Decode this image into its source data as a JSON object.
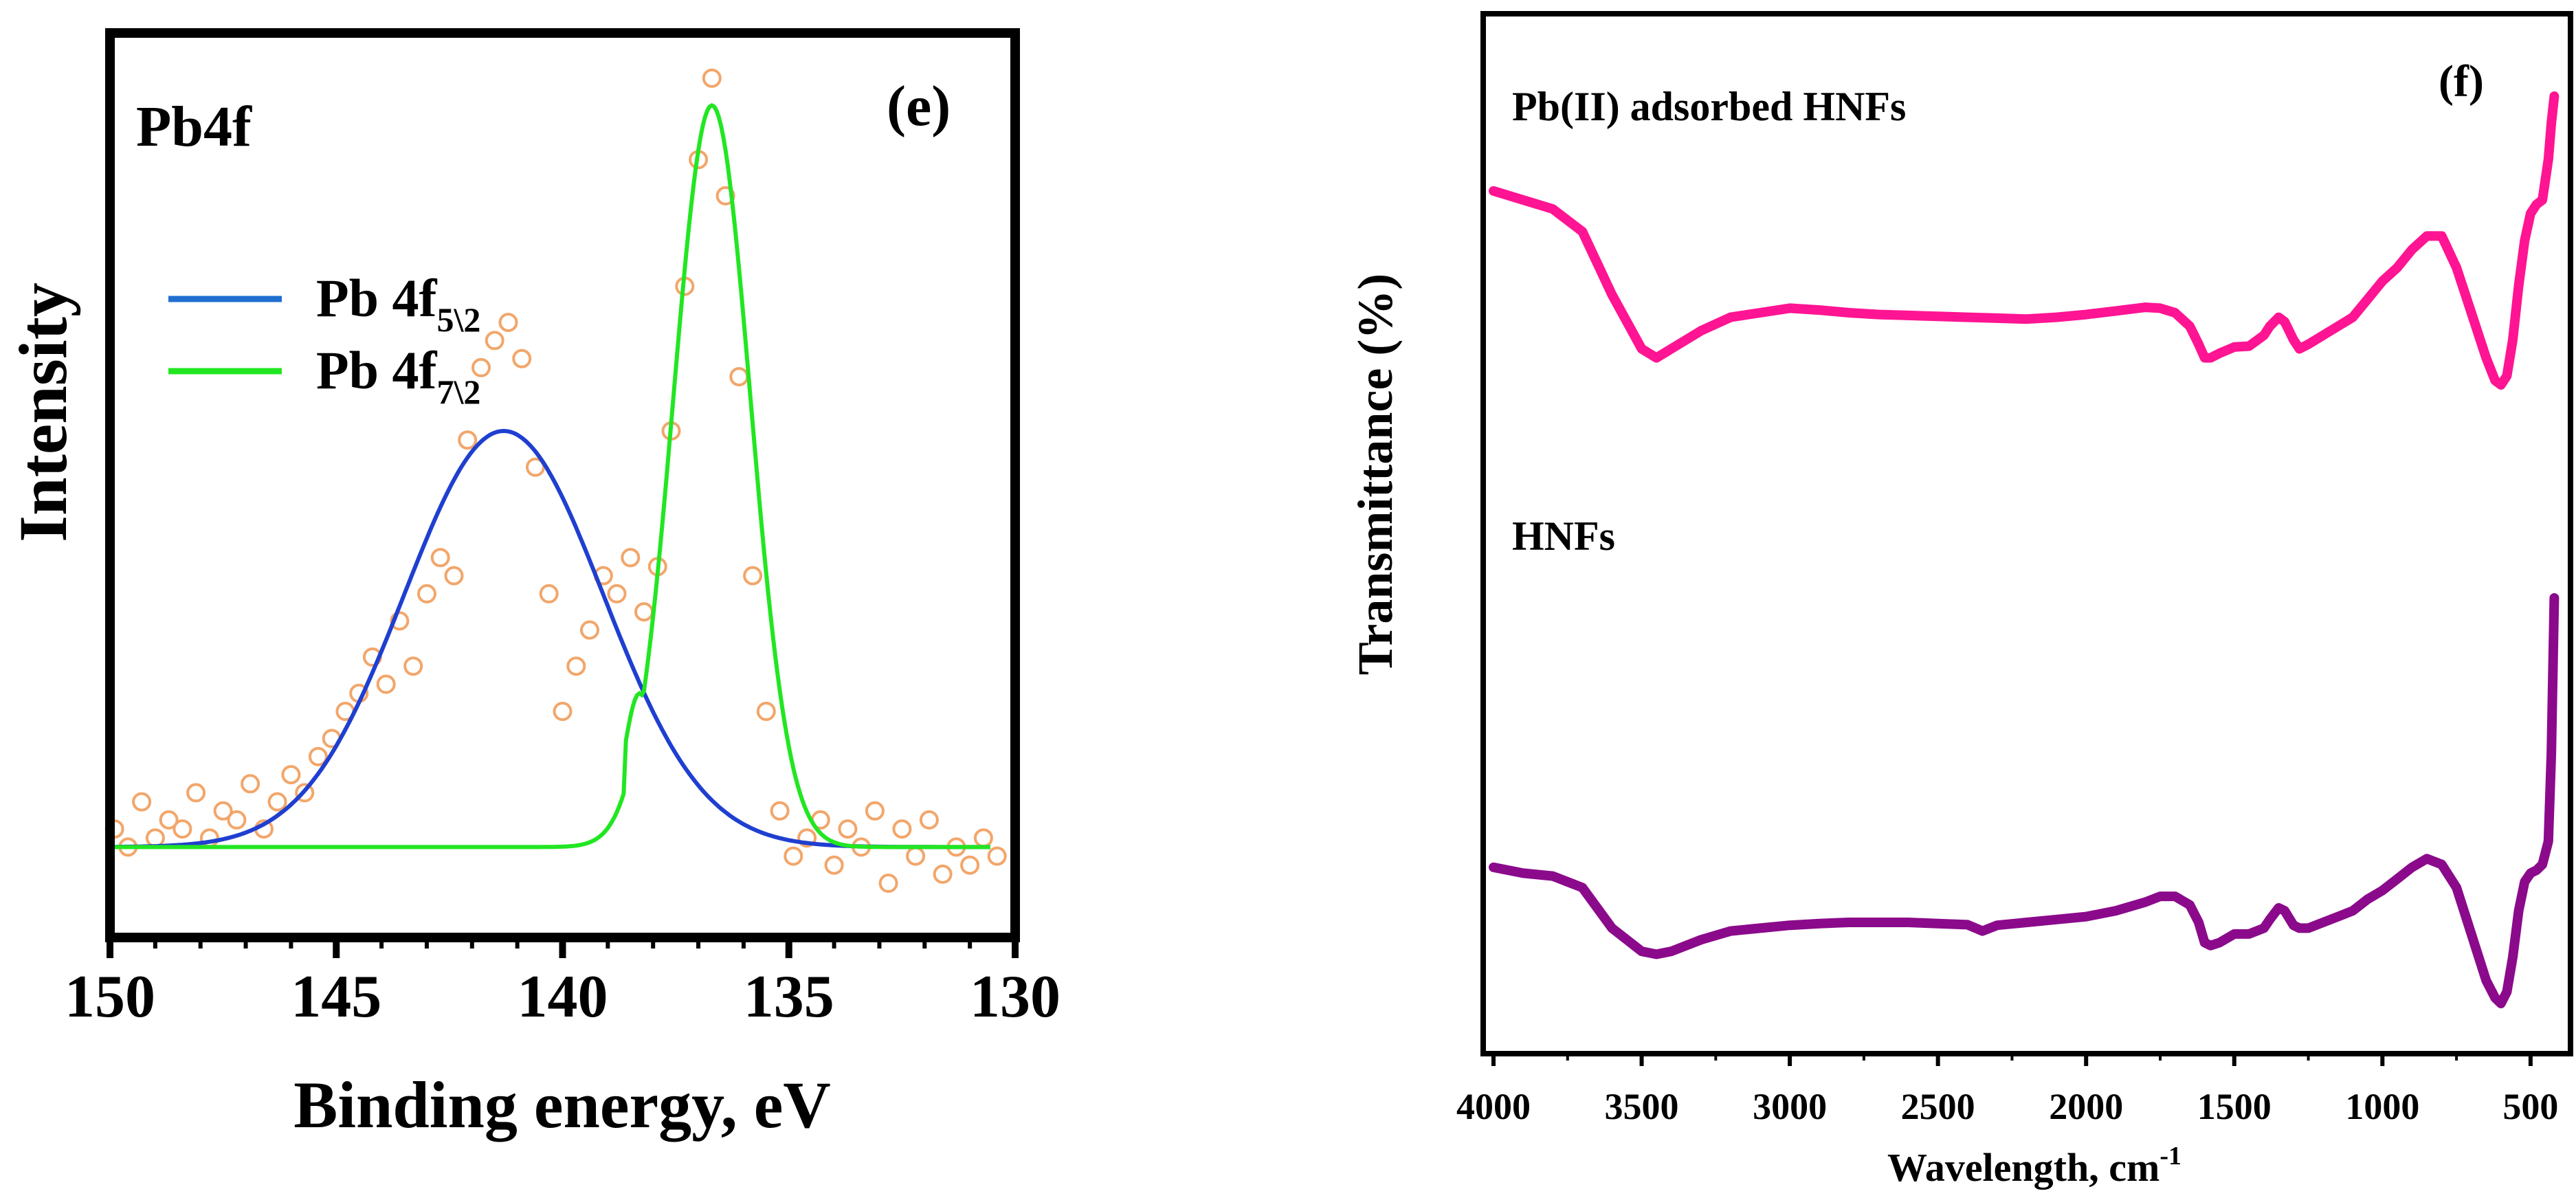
{
  "chart_data": [
    {
      "id": "e",
      "type": "scatter+line",
      "panel_label": "(e)",
      "title": "Pb4f",
      "xlabel": "Binding energy, eV",
      "ylabel": "Intensity",
      "xlim": [
        150,
        130
      ],
      "x_reversed": true,
      "ylim": [
        0,
        1
      ],
      "x_ticks": [
        150,
        145,
        140,
        135,
        130
      ],
      "y_ticks_shown": false,
      "legend": {
        "placement": "top-left",
        "entries": [
          {
            "label_main": "Pb 4f",
            "label_sub": "5\\2",
            "color": "#1f3fd0"
          },
          {
            "label_main": "Pb 4f",
            "label_sub": "7\\2",
            "color": "#22e622"
          }
        ]
      },
      "series": [
        {
          "name": "Pb 4f5\\2",
          "kind": "gaussian",
          "color": "#1f3fd0",
          "center": 141.3,
          "sigma": 2.2,
          "amplitude": 0.46,
          "baseline": 0.1
        },
        {
          "name": "Pb 4f7\\2",
          "kind": "gaussian",
          "color": "#22e622",
          "center": 136.7,
          "sigma": 0.85,
          "amplitude": 0.82,
          "baseline": 0.1,
          "shoulder": {
            "x": 138.3,
            "y": 0.27
          }
        },
        {
          "name": "raw data",
          "kind": "scatter",
          "marker": "open-circle",
          "color": "#f2a66a",
          "x": [
            149.9,
            149.6,
            149.3,
            149.0,
            148.7,
            148.4,
            148.1,
            147.8,
            147.5,
            147.2,
            146.9,
            146.6,
            146.3,
            146.0,
            145.7,
            145.4,
            145.1,
            144.8,
            144.5,
            144.2,
            143.9,
            143.6,
            143.3,
            143.0,
            142.7,
            142.4,
            142.1,
            141.8,
            141.5,
            141.2,
            140.9,
            140.6,
            140.3,
            140.0,
            139.7,
            139.4,
            139.1,
            138.8,
            138.5,
            138.2,
            137.9,
            137.6,
            137.3,
            137.0,
            136.7,
            136.4,
            136.1,
            135.8,
            135.5,
            135.2,
            134.9,
            134.6,
            134.3,
            134.0,
            133.7,
            133.4,
            133.1,
            132.8,
            132.5,
            132.2,
            131.9,
            131.6,
            131.3,
            131.0,
            130.7,
            130.4
          ],
          "y": [
            0.12,
            0.1,
            0.15,
            0.11,
            0.13,
            0.12,
            0.16,
            0.11,
            0.14,
            0.13,
            0.17,
            0.12,
            0.15,
            0.18,
            0.16,
            0.2,
            0.22,
            0.25,
            0.27,
            0.31,
            0.28,
            0.35,
            0.3,
            0.38,
            0.42,
            0.4,
            0.55,
            0.63,
            0.66,
            0.68,
            0.64,
            0.52,
            0.38,
            0.25,
            0.3,
            0.34,
            0.4,
            0.38,
            0.42,
            0.36,
            0.41,
            0.56,
            0.72,
            0.86,
            0.95,
            0.82,
            0.62,
            0.4,
            0.25,
            0.14,
            0.09,
            0.11,
            0.13,
            0.08,
            0.12,
            0.1,
            0.14,
            0.06,
            0.12,
            0.09,
            0.13,
            0.07,
            0.1,
            0.08,
            0.11,
            0.09
          ]
        }
      ]
    },
    {
      "id": "f",
      "type": "line",
      "panel_label": "(f)",
      "xlabel": "Wavelength, cm",
      "xlabel_sup": "-1",
      "ylabel": "Transmittance (%)",
      "xlim": [
        4000,
        400
      ],
      "x_reversed": true,
      "ylim": [
        0,
        1
      ],
      "x_ticks": [
        4000,
        3500,
        3000,
        2500,
        2000,
        1500,
        1000,
        500
      ],
      "y_ticks_shown": false,
      "series": [
        {
          "name": "Pb(II) adsorbed HNFs",
          "color": "#ff1493",
          "x": [
            4000,
            3900,
            3800,
            3700,
            3600,
            3500,
            3450,
            3400,
            3300,
            3200,
            3100,
            3000,
            2900,
            2800,
            2700,
            2600,
            2500,
            2400,
            2300,
            2200,
            2100,
            2000,
            1900,
            1800,
            1750,
            1700,
            1650,
            1620,
            1600,
            1580,
            1550,
            1500,
            1450,
            1400,
            1380,
            1350,
            1330,
            1300,
            1280,
            1250,
            1200,
            1150,
            1100,
            1050,
            1000,
            950,
            900,
            850,
            800,
            750,
            700,
            650,
            620,
            600,
            580,
            560,
            540,
            520,
            500,
            480,
            460,
            440,
            430,
            420
          ],
          "y": [
            0.885,
            0.875,
            0.865,
            0.84,
            0.77,
            0.71,
            0.7,
            0.71,
            0.73,
            0.745,
            0.75,
            0.755,
            0.753,
            0.75,
            0.748,
            0.747,
            0.746,
            0.745,
            0.744,
            0.743,
            0.745,
            0.748,
            0.752,
            0.756,
            0.755,
            0.75,
            0.735,
            0.715,
            0.7,
            0.7,
            0.705,
            0.712,
            0.713,
            0.725,
            0.735,
            0.745,
            0.74,
            0.72,
            0.71,
            0.715,
            0.725,
            0.735,
            0.745,
            0.765,
            0.785,
            0.8,
            0.82,
            0.835,
            0.835,
            0.8,
            0.75,
            0.7,
            0.675,
            0.67,
            0.68,
            0.72,
            0.78,
            0.83,
            0.86,
            0.87,
            0.875,
            0.92,
            0.96,
            0.99
          ]
        },
        {
          "name": "HNFs",
          "color": "#8b0a8b",
          "x": [
            4000,
            3900,
            3800,
            3700,
            3600,
            3500,
            3450,
            3400,
            3300,
            3200,
            3100,
            3000,
            2900,
            2800,
            2700,
            2600,
            2500,
            2400,
            2350,
            2300,
            2200,
            2100,
            2000,
            1900,
            1800,
            1750,
            1700,
            1650,
            1620,
            1600,
            1580,
            1550,
            1500,
            1450,
            1400,
            1380,
            1350,
            1330,
            1300,
            1280,
            1250,
            1200,
            1150,
            1100,
            1050,
            1000,
            950,
            900,
            850,
            800,
            750,
            700,
            650,
            620,
            600,
            580,
            560,
            540,
            520,
            500,
            480,
            460,
            440,
            430,
            420
          ],
          "y": [
            0.255,
            0.245,
            0.24,
            0.22,
            0.15,
            0.11,
            0.105,
            0.11,
            0.13,
            0.145,
            0.15,
            0.155,
            0.158,
            0.16,
            0.16,
            0.16,
            0.158,
            0.156,
            0.145,
            0.155,
            0.16,
            0.165,
            0.17,
            0.18,
            0.195,
            0.205,
            0.205,
            0.19,
            0.16,
            0.125,
            0.12,
            0.125,
            0.14,
            0.14,
            0.15,
            0.165,
            0.185,
            0.18,
            0.155,
            0.15,
            0.15,
            0.16,
            0.17,
            0.18,
            0.2,
            0.215,
            0.235,
            0.255,
            0.27,
            0.26,
            0.22,
            0.14,
            0.06,
            0.03,
            0.02,
            0.04,
            0.1,
            0.18,
            0.23,
            0.245,
            0.25,
            0.26,
            0.3,
            0.45,
            0.72
          ]
        }
      ],
      "series_labels_in_plot": [
        "Pb(II) adsorbed HNFs",
        "HNFs"
      ]
    }
  ]
}
